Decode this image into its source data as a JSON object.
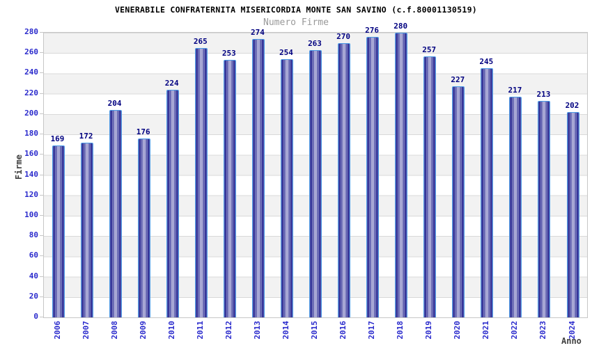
{
  "chart_data": {
    "type": "bar",
    "title": "VENERABILE CONFRATERNITA MISERICORDIA MONTE SAN SAVINO (c.f.80001130519)",
    "subtitle": "Numero Firme",
    "xlabel": "Anno",
    "ylabel": "Firme",
    "categories": [
      "2006",
      "2007",
      "2008",
      "2009",
      "2010",
      "2011",
      "2012",
      "2013",
      "2014",
      "2015",
      "2016",
      "2017",
      "2018",
      "2019",
      "2020",
      "2021",
      "2022",
      "2023",
      "2024"
    ],
    "values": [
      169,
      172,
      204,
      176,
      224,
      265,
      253,
      274,
      254,
      263,
      270,
      276,
      280,
      257,
      227,
      245,
      217,
      213,
      202
    ],
    "ylim": [
      0,
      280
    ],
    "ytick_step": 20,
    "yticks": [
      0,
      20,
      40,
      60,
      80,
      100,
      120,
      140,
      160,
      180,
      200,
      220,
      240,
      260,
      280
    ],
    "grid": true,
    "legend": "none",
    "colors": {
      "bar_edge": "#23238e",
      "bar_center": "#a9a9d6",
      "bar_border": "#4a9ae6",
      "tick_label": "#2a2acc",
      "value_label": "#000080",
      "title": "#000000",
      "subtitle": "#999999",
      "axis_title": "#404040",
      "band_gray": "#f2f2f2",
      "band_white": "#ffffff",
      "grid_line": "#d9d9d9",
      "plot_border": "#c6c6c6",
      "background": "#ffffff"
    }
  }
}
